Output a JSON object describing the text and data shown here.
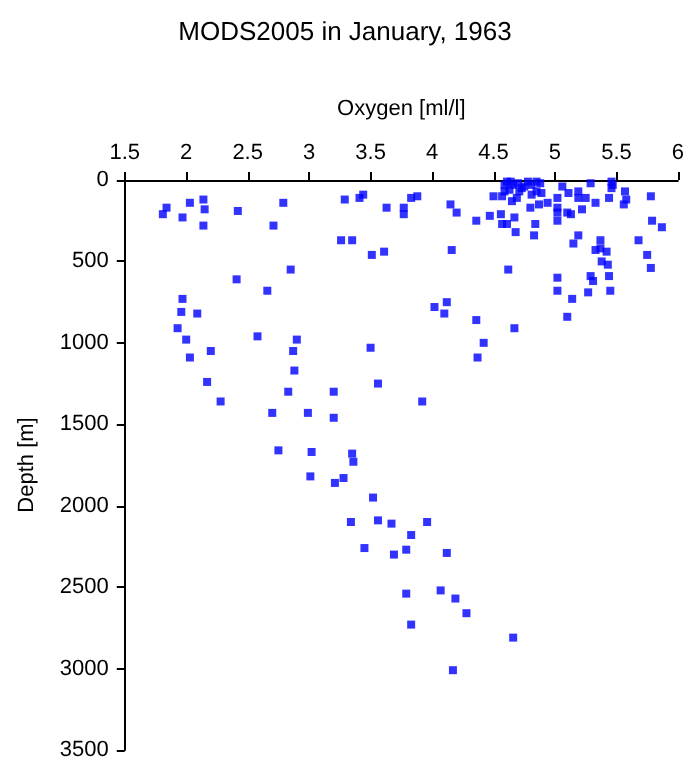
{
  "chart_data": {
    "type": "scatter",
    "title": "MODS2005 in January, 1963",
    "xlabel": "Oxygen [ml/l]",
    "ylabel": "Depth [m]",
    "xlim": [
      1.5,
      6
    ],
    "xticks": [
      1.5,
      2,
      2.5,
      3,
      3.5,
      4,
      4.5,
      5,
      5.5,
      6
    ],
    "ylim": [
      3500,
      0
    ],
    "yticks": [
      0,
      500,
      1000,
      1500,
      2000,
      2500,
      3000,
      3500
    ],
    "grid": false,
    "marker": "square",
    "series": [
      {
        "color": "#0000ff",
        "x": [
          1.81,
          1.84,
          1.97,
          2.03,
          2.14,
          2.15,
          2.14,
          2.42,
          2.79,
          2.71,
          3.29,
          3.41,
          3.44,
          3.26,
          3.35,
          3.51,
          3.61,
          3.63,
          2.41,
          2.66,
          2.85,
          1.97,
          1.96,
          2.09,
          1.93,
          2.0,
          2.03,
          2.2,
          2.17,
          2.28,
          2.58,
          2.9,
          2.87,
          2.88,
          2.83,
          2.7,
          2.99,
          3.2,
          3.2,
          3.5,
          3.56,
          2.75,
          3.02,
          3.35,
          3.36,
          3.01,
          3.28,
          3.92,
          3.21,
          3.52,
          3.34,
          3.56,
          3.67,
          3.83,
          3.96,
          3.45,
          3.69,
          3.79,
          4.12,
          3.79,
          4.07,
          4.19,
          4.28,
          3.83,
          4.17,
          4.66,
          3.77,
          3.77,
          3.83,
          3.88,
          4.15,
          4.2,
          4.16,
          4.36,
          4.47,
          4.5,
          4.56,
          4.57,
          4.61,
          4.67,
          4.68,
          4.62,
          4.84,
          4.83,
          4.8,
          4.87,
          4.94,
          5.02,
          5.02,
          5.02,
          5.02,
          5.06,
          5.11,
          5.1,
          5.13,
          5.19,
          5.19,
          5.22,
          5.25,
          5.33,
          5.29,
          5.44,
          5.46,
          5.46,
          5.56,
          5.58,
          5.57,
          5.78,
          5.79,
          5.87,
          5.68,
          5.75,
          5.78,
          5.15,
          5.19,
          5.37,
          5.33,
          5.37,
          5.42,
          5.38,
          5.43,
          5.29,
          5.31,
          5.44,
          5.45,
          5.27,
          5.14,
          5.02,
          5.02,
          5.1,
          4.02,
          4.12,
          4.1,
          4.36,
          4.42,
          4.37,
          4.67,
          4.61,
          4.64,
          4.59,
          4.66,
          4.7,
          4.73,
          4.78,
          4.81,
          4.85,
          4.88,
          4.85,
          4.71,
          4.63,
          4.59,
          4.65,
          4.75,
          4.57,
          4.69,
          4.81,
          4.89,
          5.47
        ],
        "values": [
          210,
          170,
          230,
          140,
          120,
          180,
          280,
          190,
          140,
          280,
          120,
          110,
          90,
          370,
          370,
          460,
          440,
          170,
          610,
          680,
          550,
          730,
          810,
          820,
          910,
          980,
          1090,
          1050,
          1240,
          1360,
          960,
          980,
          1050,
          1170,
          1300,
          1430,
          1430,
          1300,
          1460,
          1030,
          1250,
          1660,
          1670,
          1680,
          1730,
          1820,
          1830,
          1360,
          1860,
          1950,
          2100,
          2090,
          2110,
          2180,
          2100,
          2260,
          2300,
          2270,
          2290,
          2540,
          2520,
          2570,
          2660,
          2730,
          3010,
          2810,
          170,
          210,
          110,
          100,
          150,
          200,
          430,
          250,
          220,
          100,
          210,
          270,
          270,
          230,
          320,
          550,
          270,
          340,
          170,
          150,
          140,
          170,
          200,
          250,
          110,
          40,
          80,
          200,
          210,
          70,
          110,
          180,
          110,
          140,
          20,
          110,
          10,
          50,
          150,
          120,
          70,
          100,
          250,
          290,
          370,
          460,
          540,
          390,
          340,
          370,
          430,
          420,
          440,
          500,
          520,
          590,
          620,
          590,
          680,
          690,
          730,
          600,
          680,
          840,
          780,
          750,
          820,
          860,
          1000,
          1090,
          910,
          10,
          10,
          30,
          30,
          20,
          50,
          10,
          30,
          10,
          20,
          70,
          70,
          60,
          70,
          130,
          40,
          100,
          110,
          90,
          80,
          30
        ]
      }
    ]
  }
}
